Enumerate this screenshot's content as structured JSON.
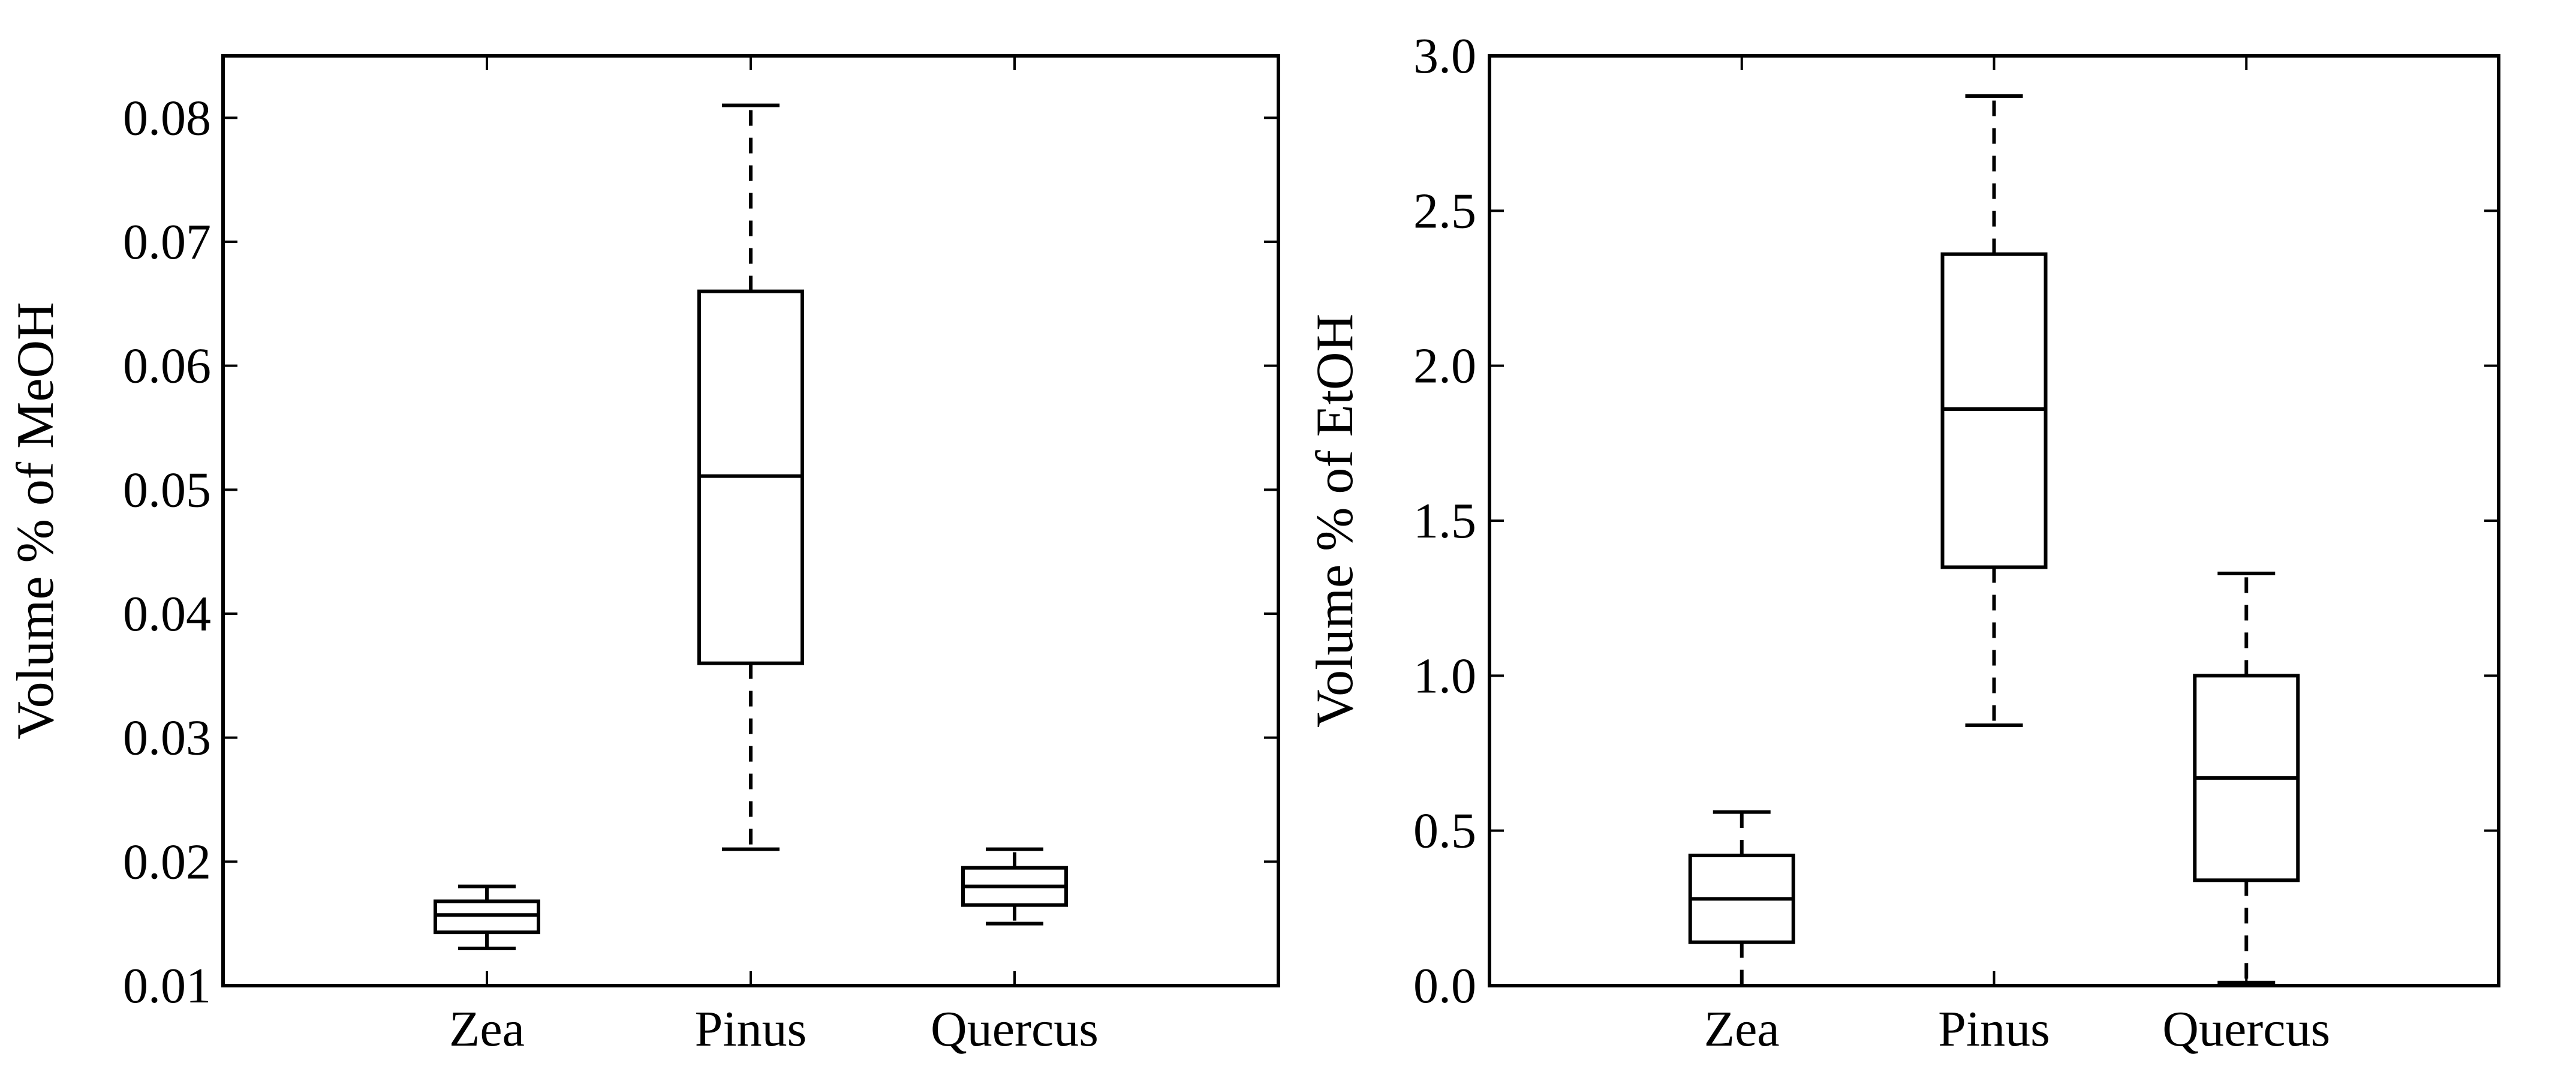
{
  "chart_data": [
    {
      "type": "box",
      "ylabel": "Volume % of MeOH",
      "categories": [
        "Zea",
        "Pinus",
        "Quercus"
      ],
      "ylim": [
        0.01,
        0.085
      ],
      "yticks": [
        0.01,
        0.02,
        0.03,
        0.04,
        0.05,
        0.06,
        0.07,
        0.08
      ],
      "ytick_labels": [
        "0.01",
        "0.02",
        "0.03",
        "0.04",
        "0.05",
        "0.06",
        "0.07",
        "0.08"
      ],
      "boxes": [
        {
          "category": "Zea",
          "whisker_low": 0.013,
          "q1": 0.0143,
          "median": 0.0157,
          "q3": 0.0168,
          "whisker_high": 0.018
        },
        {
          "category": "Pinus",
          "whisker_low": 0.021,
          "q1": 0.036,
          "median": 0.0511,
          "q3": 0.066,
          "whisker_high": 0.081
        },
        {
          "category": "Quercus",
          "whisker_low": 0.015,
          "q1": 0.0165,
          "median": 0.018,
          "q3": 0.0195,
          "whisker_high": 0.021
        }
      ],
      "grid": false
    },
    {
      "type": "box",
      "ylabel": "Volume % of EtOH",
      "categories": [
        "Zea",
        "Pinus",
        "Quercus"
      ],
      "ylim": [
        0.0,
        3.0
      ],
      "yticks": [
        0.0,
        0.5,
        1.0,
        1.5,
        2.0,
        2.5,
        3.0
      ],
      "ytick_labels": [
        "0.0",
        "0.5",
        "1.0",
        "1.5",
        "2.0",
        "2.5",
        "3.0"
      ],
      "boxes": [
        {
          "category": "Zea",
          "whisker_low": 0.0,
          "q1": 0.14,
          "median": 0.28,
          "q3": 0.42,
          "whisker_high": 0.56
        },
        {
          "category": "Pinus",
          "whisker_low": 0.84,
          "q1": 1.35,
          "median": 1.86,
          "q3": 2.36,
          "whisker_high": 2.87
        },
        {
          "category": "Quercus",
          "whisker_low": 0.01,
          "q1": 0.34,
          "median": 0.67,
          "q3": 1.0,
          "whisker_high": 1.33
        }
      ],
      "grid": false
    }
  ]
}
